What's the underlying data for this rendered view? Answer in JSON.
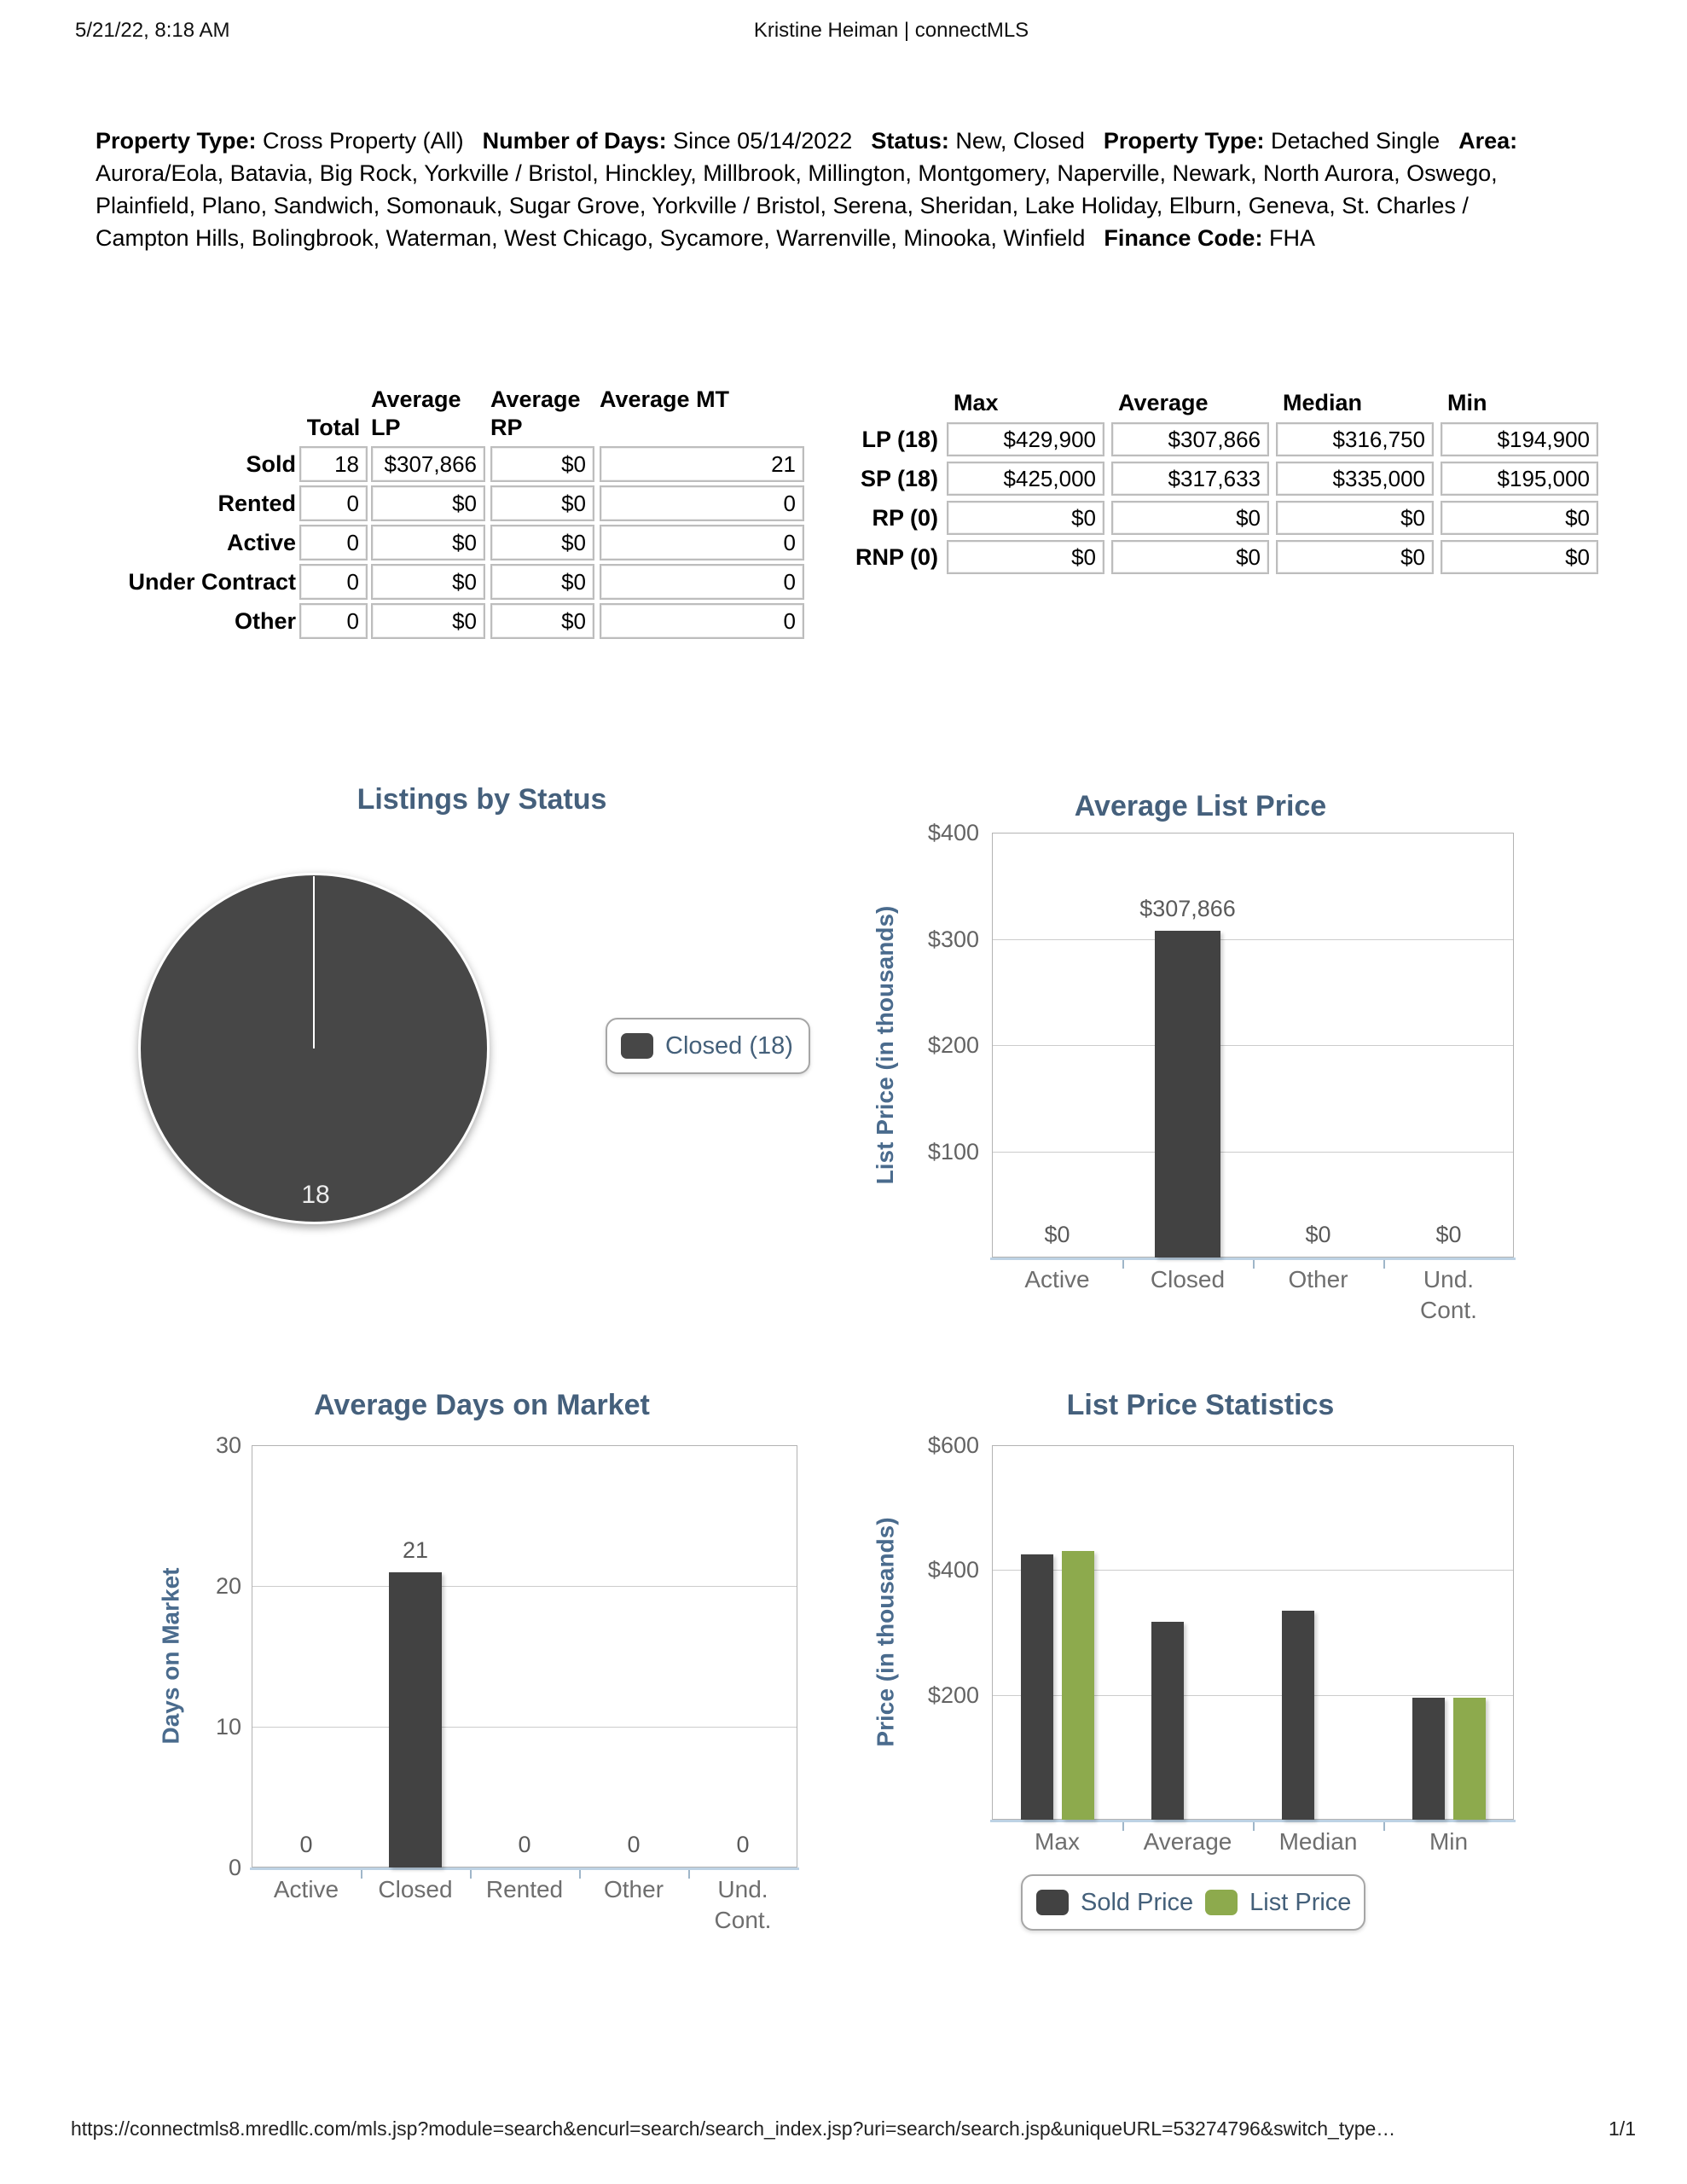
{
  "header": {
    "datetime": "5/21/22, 8:18 AM",
    "title": "Kristine Heiman | connectMLS"
  },
  "footer": {
    "url": "https://connectmls8.mredllc.com/mls.jsp?module=search&encurl=search/search_index.jsp?uri=search/search.jsp&uniqueURL=53274796&switch_type…",
    "page_indicator": "1/1"
  },
  "criteria": {
    "segments": [
      {
        "label": "Property Type:",
        "value": "Cross Property (All)"
      },
      {
        "label": "Number of Days:",
        "value": "Since 05/14/2022"
      },
      {
        "label": "Status:",
        "value": "New, Closed"
      },
      {
        "label": "Property Type:",
        "value": "Detached Single"
      },
      {
        "label": "Area:",
        "value": "Aurora/Eola, Batavia, Big Rock, Yorkville / Bristol, Hinckley, Millbrook, Millington, Montgomery, Naperville, Newark, North Aurora, Oswego, Plainfield, Plano, Sandwich, Somonauk, Sugar Grove, Yorkville / Bristol, Serena, Sheridan, Lake Holiday, Elburn, Geneva, St. Charles / Campton Hills, Bolingbrook, Waterman, West Chicago, Sycamore, Warrenville, Minooka, Winfield"
      },
      {
        "label": "Finance Code:",
        "value": "FHA"
      }
    ]
  },
  "summary_table": {
    "columns": [
      "Total",
      "Average LP",
      "Average RP",
      "Average MT"
    ],
    "rows": [
      {
        "label": "Sold",
        "values": [
          "18",
          "$307,866",
          "$0",
          "21"
        ]
      },
      {
        "label": "Rented",
        "values": [
          "0",
          "$0",
          "$0",
          "0"
        ]
      },
      {
        "label": "Active",
        "values": [
          "0",
          "$0",
          "$0",
          "0"
        ]
      },
      {
        "label": "Under Contract",
        "values": [
          "0",
          "$0",
          "$0",
          "0"
        ]
      },
      {
        "label": "Other",
        "values": [
          "0",
          "$0",
          "$0",
          "0"
        ]
      }
    ]
  },
  "stats_table": {
    "columns": [
      "Max",
      "Average",
      "Median",
      "Min"
    ],
    "rows": [
      {
        "label": "LP (18)",
        "values": [
          "$429,900",
          "$307,866",
          "$316,750",
          "$194,900"
        ]
      },
      {
        "label": "SP (18)",
        "values": [
          "$425,000",
          "$317,633",
          "$335,000",
          "$195,000"
        ]
      },
      {
        "label": "RP (0)",
        "values": [
          "$0",
          "$0",
          "$0",
          "$0"
        ]
      },
      {
        "label": "RNP (0)",
        "values": [
          "$0",
          "$0",
          "$0",
          "$0"
        ]
      }
    ]
  },
  "chart_data": [
    {
      "type": "pie",
      "title": "Listings by Status",
      "slices": [
        {
          "label": "Closed",
          "value": 18
        }
      ],
      "data_label": "18",
      "legend": [
        {
          "label": "Closed (18)",
          "color": "#474747"
        }
      ],
      "legend_position": "right"
    },
    {
      "type": "bar",
      "title": "Average List Price",
      "ylabel": "List Price (in thousands)",
      "categories": [
        "Active",
        "Closed",
        "Other",
        "Und. Cont."
      ],
      "values": [
        0,
        307.866,
        0,
        0
      ],
      "value_labels": [
        "$0",
        "$307,866",
        "$0",
        "$0"
      ],
      "ylim": [
        0,
        400
      ],
      "yticks": [
        {
          "value": 400,
          "label": "$400"
        },
        {
          "value": 300,
          "label": "$300"
        },
        {
          "value": 200,
          "label": "$200"
        },
        {
          "value": 100,
          "label": "$100"
        }
      ],
      "grid": true
    },
    {
      "type": "bar",
      "title": "Average Days on Market",
      "ylabel": "Days on Market",
      "categories": [
        "Active",
        "Closed",
        "Rented",
        "Other",
        "Und. Cont."
      ],
      "values": [
        0,
        21,
        0,
        0,
        0
      ],
      "value_labels": [
        "0",
        "21",
        "0",
        "0",
        "0"
      ],
      "ylim": [
        0,
        30
      ],
      "yticks": [
        {
          "value": 30,
          "label": "30"
        },
        {
          "value": 20,
          "label": "20"
        },
        {
          "value": 10,
          "label": "10"
        },
        {
          "value": 0,
          "label": "0"
        }
      ],
      "grid": true
    },
    {
      "type": "bar",
      "title": "List Price Statistics",
      "ylabel": "Price (in thousands)",
      "categories": [
        "Max",
        "Average",
        "Median",
        "Min"
      ],
      "series": [
        {
          "name": "Sold Price",
          "color": "#424242",
          "values": [
            425,
            317.633,
            335,
            195
          ]
        },
        {
          "name": "List Price",
          "color": "#8daa4d",
          "values": [
            429.9,
            null,
            null,
            194.9
          ]
        }
      ],
      "ylim": [
        0,
        600
      ],
      "yticks": [
        {
          "value": 600,
          "label": "$600"
        },
        {
          "value": 400,
          "label": "$400"
        },
        {
          "value": 200,
          "label": "$200"
        }
      ],
      "legend_position": "bottom",
      "grid": true
    }
  ],
  "colors": {
    "title_blue": "#45607c",
    "axis_label_blue": "#4a6b8d",
    "bar_dark": "#424242",
    "bar_green": "#8daa4d",
    "pie_fill": "#474747"
  }
}
